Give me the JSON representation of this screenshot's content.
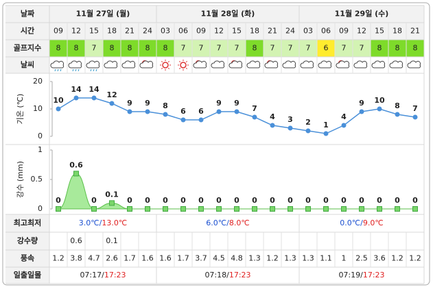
{
  "labels": {
    "date": "날짜",
    "time": "시간",
    "golf": "골프지수",
    "weather": "날씨",
    "minmax": "최고최저",
    "rain": "강수량",
    "wind": "풍속",
    "sun": "일출일몰"
  },
  "dates": [
    "11월 27일 (월)",
    "11월 28일 (화)",
    "11월 29일 (수)"
  ],
  "times": [
    "09",
    "12",
    "15",
    "18",
    "21",
    "24",
    "03",
    "06",
    "09",
    "12",
    "15",
    "18",
    "21",
    "24",
    "03",
    "06",
    "09",
    "12",
    "15",
    "18",
    "21"
  ],
  "golf_index": [
    8,
    8,
    7,
    8,
    8,
    8,
    8,
    7,
    7,
    7,
    7,
    8,
    7,
    7,
    7,
    6,
    7,
    7,
    8,
    8,
    8
  ],
  "golf_colors": {
    "8": "#7edb2a",
    "7": "#d3f3b3",
    "6": "#ffec2e"
  },
  "chart_data": [
    {
      "type": "line",
      "y_label": "기온 (℃)",
      "values": [
        10,
        14,
        14,
        12,
        9,
        9,
        8,
        6,
        6,
        9,
        9,
        7,
        4,
        3,
        2,
        1,
        4,
        9,
        10,
        8,
        7
      ],
      "ylim": [
        0,
        20
      ],
      "yticks": [
        0,
        10,
        20
      ],
      "color": "#4a90d9"
    },
    {
      "type": "area",
      "y_label": "강수 (mm)",
      "values": [
        0,
        0.6,
        0,
        0.1,
        0,
        0,
        0,
        0,
        0,
        0,
        0,
        0,
        0,
        0,
        0,
        0,
        0,
        0,
        0,
        0,
        0
      ],
      "ylim": [
        0,
        1
      ],
      "yticks": [
        0,
        0.5,
        1
      ],
      "color": "#99e68a"
    }
  ],
  "minmax": [
    {
      "low": "3.0℃/",
      "high": "13.0℃"
    },
    {
      "low": "6.0℃/",
      "high": "8.0℃"
    },
    {
      "low": "0.0℃/",
      "high": "9.0℃"
    }
  ],
  "rain": [
    null,
    0.6,
    null,
    0.1,
    null,
    null,
    null,
    null,
    null,
    null,
    null,
    null,
    null,
    null,
    null,
    null,
    null,
    null,
    null,
    null,
    null
  ],
  "wind": [
    1.2,
    3.8,
    4.7,
    2.6,
    1.7,
    1.6,
    1.6,
    1.7,
    3.7,
    4.5,
    4.8,
    1.3,
    1.2,
    1.3,
    1.3,
    1.1,
    1.0,
    2.5,
    3.6,
    1.2,
    1.2
  ],
  "sun": [
    {
      "rise": "07:17/",
      "set": "17:23"
    },
    {
      "rise": "07:18/",
      "set": "17:23"
    },
    {
      "rise": "07:19/",
      "set": "17:23"
    }
  ]
}
